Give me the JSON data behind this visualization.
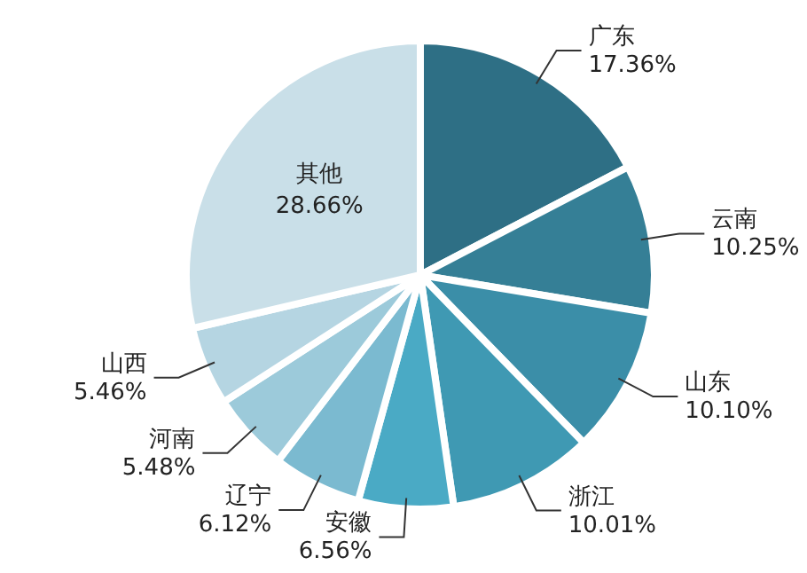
{
  "chart_data": {
    "type": "pie",
    "categories": [
      "广东",
      "云南",
      "山东",
      "浙江",
      "安徽",
      "辽宁",
      "河南",
      "山西",
      "其他"
    ],
    "values": [
      17.36,
      10.25,
      10.1,
      10.01,
      6.56,
      6.12,
      5.48,
      5.46,
      28.66
    ],
    "value_labels": [
      "17.36%",
      "10.25%",
      "10.10%",
      "10.01%",
      "6.56%",
      "6.12%",
      "5.48%",
      "5.46%",
      "28.66%"
    ],
    "colors": [
      "#2e6f85",
      "#357f96",
      "#3b8ea8",
      "#3f99b3",
      "#4aaac5",
      "#7bbad0",
      "#9ccada",
      "#b5d5e2",
      "#c9dfe8"
    ],
    "legend": false
  }
}
